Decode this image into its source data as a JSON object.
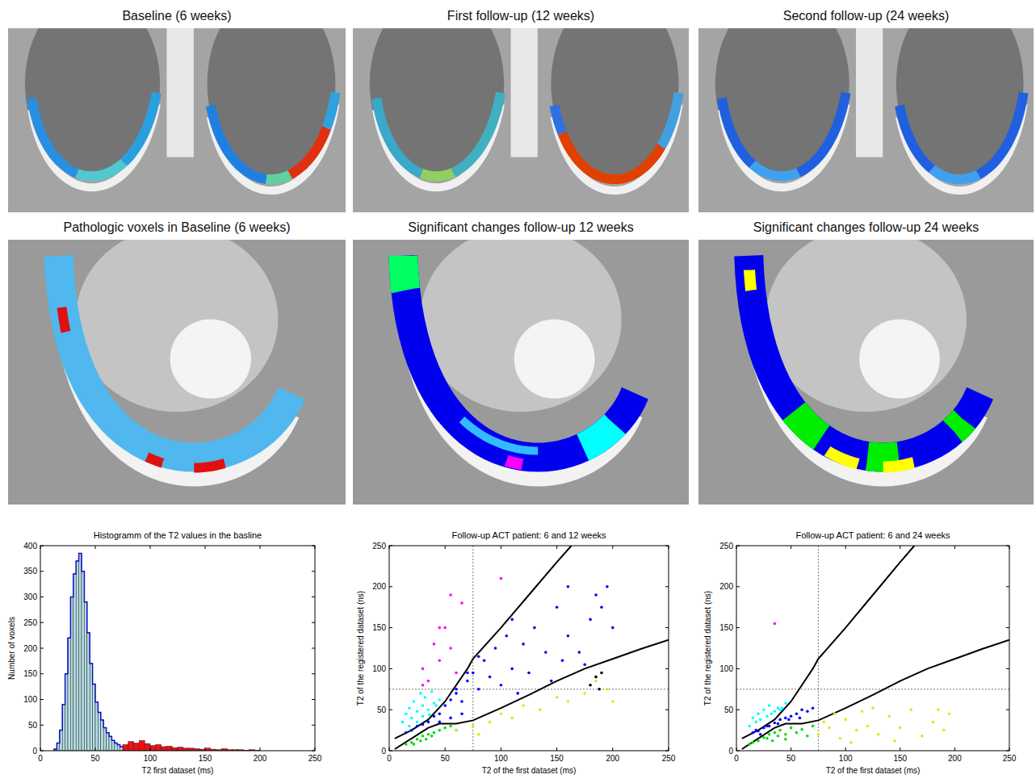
{
  "panels": [
    {
      "title": "Baseline (6 weeks)"
    },
    {
      "title": "First follow-up (12 weeks)"
    },
    {
      "title": "Second follow-up (24 weeks)"
    },
    {
      "title": "Pathologic voxels in Baseline (6 weeks)"
    },
    {
      "title": "Significant changes follow-up  12 weeks"
    },
    {
      "title": "Significant changes follow-up 24 weeks"
    }
  ],
  "chart_data": [
    {
      "type": "histogram",
      "title": "Histogramm of the T2 values in the basline",
      "x_label": "T2 first dataset (ms)",
      "y_label": "Number of voxels",
      "bins": [
        12.5,
        15,
        17.5,
        20,
        22.5,
        25,
        27.5,
        30,
        32.5,
        35,
        37.5,
        40,
        42.5,
        45,
        47.5,
        50,
        52.5,
        55,
        57.5,
        60,
        62.5,
        65,
        67.5,
        70,
        72.5,
        75,
        80,
        85,
        90,
        95,
        100,
        105,
        110,
        115,
        120,
        125,
        130,
        135,
        140,
        145,
        150,
        155,
        160,
        165,
        170,
        175,
        180,
        185,
        190,
        195,
        200
      ],
      "values": [
        3,
        15,
        40,
        90,
        150,
        220,
        300,
        345,
        370,
        385,
        350,
        290,
        230,
        170,
        130,
        95,
        75,
        60,
        45,
        35,
        28,
        20,
        15,
        12,
        8,
        12,
        18,
        15,
        20,
        14,
        10,
        12,
        8,
        9,
        6,
        7,
        5,
        5,
        4,
        3,
        5,
        3,
        2,
        4,
        2,
        2,
        2,
        1,
        2,
        1
      ],
      "colors": [
        "#b5dde3",
        "#b5dde3",
        "#b5dde3",
        "#b5dde3",
        "#b5dde3",
        "#b5dde3",
        "#b5dde3",
        "#b5dde3",
        "#b5dde3",
        "#b5dde3",
        "#b5dde3",
        "#b5dde3",
        "#b5dde3",
        "#b5dde3",
        "#b5dde3",
        "#b5dde3",
        "#b5dde3",
        "#b5dde3",
        "#b5dde3",
        "#b5dde3",
        "#b5dde3",
        "#b5dde3",
        "#b5dde3",
        "#b5dde3",
        "#b5dde3",
        "#ee1111",
        "#ee1111",
        "#ee1111",
        "#ee1111",
        "#ee1111",
        "#ee1111",
        "#ee1111",
        "#ee1111",
        "#ee1111",
        "#ee1111",
        "#ee1111",
        "#ee1111",
        "#ee1111",
        "#ee1111",
        "#ee1111",
        "#ee1111",
        "#ee1111",
        "#ee1111",
        "#ee1111",
        "#ee1111",
        "#ee1111",
        "#ee1111",
        "#ee1111",
        "#ee1111",
        "#ee1111"
      ],
      "xlim": [
        0,
        250
      ],
      "xticks": [
        0,
        50,
        100,
        150,
        200,
        250
      ],
      "ylim": [
        0,
        400
      ],
      "yticks": [
        0,
        50,
        100,
        150,
        200,
        250,
        300,
        350,
        400
      ],
      "grid": false
    },
    {
      "type": "scatter",
      "title": "Follow-up ACT patient: 6 and 12 weeks",
      "x_label": "T2 of the first dataset (ms)",
      "y_label": "T2 of the registered dataset (ns)",
      "xlim": [
        0,
        250
      ],
      "xticks": [
        0,
        50,
        100,
        150,
        200,
        250
      ],
      "ylim": [
        0,
        250
      ],
      "yticks": [
        0,
        50,
        100,
        150,
        200,
        250
      ],
      "grid": false,
      "vlines": [
        75
      ],
      "hlines": [
        75
      ],
      "series": [
        {
          "type": "line",
          "color": "#000000",
          "line_style": "solid",
          "x": [
            5,
            20,
            35,
            50,
            60,
            70,
            75,
            100,
            125,
            150,
            163
          ],
          "values": [
            15,
            25,
            38,
            60,
            80,
            100,
            112,
            150,
            190,
            230,
            250
          ]
        },
        {
          "type": "line",
          "color": "#000000",
          "line_style": "solid",
          "x": [
            5,
            20,
            35,
            45,
            60,
            75,
            100,
            125,
            150,
            175,
            200,
            225,
            250
          ],
          "values": [
            2,
            15,
            28,
            33,
            33,
            37,
            52,
            68,
            85,
            100,
            112,
            124,
            135
          ]
        },
        {
          "type": "scatter",
          "color": "#00ffff",
          "marker": "dot",
          "x": [
            12,
            15,
            18,
            20,
            22,
            25,
            28,
            30,
            32,
            35,
            38,
            40,
            42,
            45,
            25,
            18,
            30,
            36
          ],
          "values": [
            35,
            45,
            52,
            40,
            60,
            48,
            70,
            55,
            65,
            50,
            72,
            58,
            55,
            62,
            35,
            30,
            42,
            44
          ]
        },
        {
          "type": "scatter",
          "color": "#0000ff",
          "marker": "dot",
          "x": [
            15,
            20,
            25,
            30,
            35,
            40,
            45,
            50,
            55,
            60,
            65,
            70,
            75,
            80,
            85,
            90,
            95,
            100,
            105,
            110,
            120,
            125,
            130,
            140,
            150,
            155,
            160,
            170,
            180,
            185,
            190,
            195,
            200,
            175,
            145,
            115,
            65,
            55,
            45,
            60,
            80,
            70,
            110,
            160
          ],
          "values": [
            22,
            25,
            30,
            32,
            35,
            42,
            45,
            55,
            62,
            70,
            60,
            85,
            95,
            75,
            110,
            90,
            125,
            80,
            140,
            100,
            130,
            95,
            150,
            120,
            175,
            110,
            140,
            120,
            160,
            190,
            175,
            200,
            150,
            105,
            85,
            70,
            45,
            40,
            35,
            75,
            115,
            95,
            160,
            200
          ]
        },
        {
          "type": "scatter",
          "color": "#00dd00",
          "marker": "dot",
          "x": [
            15,
            20,
            25,
            30,
            35,
            40,
            45,
            50,
            28,
            38,
            55,
            60,
            22,
            33
          ],
          "values": [
            8,
            10,
            14,
            18,
            20,
            22,
            25,
            28,
            12,
            18,
            30,
            25,
            8,
            14
          ]
        },
        {
          "type": "scatter",
          "color": "#ff00ff",
          "marker": "dot",
          "x": [
            30,
            35,
            40,
            45,
            50,
            55,
            60,
            65,
            30,
            100,
            45,
            55
          ],
          "values": [
            100,
            85,
            130,
            110,
            150,
            125,
            95,
            180,
            80,
            210,
            150,
            190
          ]
        },
        {
          "type": "scatter",
          "color": "#e6e600",
          "marker": "dot",
          "x": [
            60,
            75,
            90,
            100,
            110,
            120,
            135,
            150,
            160,
            175,
            185,
            195,
            200,
            80
          ],
          "values": [
            25,
            30,
            35,
            45,
            40,
            55,
            50,
            65,
            60,
            70,
            85,
            75,
            60,
            20
          ]
        },
        {
          "type": "scatter",
          "color": "#000000",
          "marker": "dot",
          "x": [
            180,
            185,
            190,
            188
          ],
          "values": [
            80,
            90,
            95,
            75
          ]
        }
      ]
    },
    {
      "type": "scatter",
      "title": "Follow-up ACT patient: 6 and 24 weeks",
      "x_label": "T2 of the first dataset (ms)",
      "y_label": "T2 of the registered dataset (ns)",
      "xlim": [
        0,
        250
      ],
      "xticks": [
        0,
        50,
        100,
        150,
        200,
        250
      ],
      "ylim": [
        0,
        250
      ],
      "yticks": [
        0,
        50,
        100,
        150,
        200,
        250
      ],
      "grid": false,
      "vlines": [
        75
      ],
      "hlines": [
        75
      ],
      "series": [
        {
          "type": "line",
          "color": "#000000",
          "line_style": "solid",
          "x": [
            5,
            20,
            35,
            50,
            60,
            70,
            75,
            100,
            125,
            150,
            163
          ],
          "values": [
            15,
            25,
            38,
            60,
            80,
            100,
            112,
            150,
            190,
            230,
            250
          ]
        },
        {
          "type": "line",
          "color": "#000000",
          "line_style": "solid",
          "x": [
            5,
            20,
            35,
            45,
            60,
            75,
            100,
            125,
            150,
            175,
            200,
            225,
            250
          ],
          "values": [
            2,
            15,
            28,
            33,
            33,
            37,
            52,
            68,
            85,
            100,
            112,
            124,
            135
          ]
        },
        {
          "type": "scatter",
          "color": "#00ffff",
          "marker": "dot",
          "x": [
            12,
            15,
            18,
            20,
            22,
            25,
            28,
            30,
            32,
            35,
            38,
            40,
            45,
            42
          ],
          "values": [
            30,
            40,
            35,
            45,
            38,
            50,
            42,
            55,
            45,
            48,
            52,
            50,
            58,
            52
          ]
        },
        {
          "type": "scatter",
          "color": "#0000ff",
          "marker": "dot",
          "x": [
            15,
            18,
            20,
            25,
            28,
            30,
            35,
            38,
            40,
            45,
            50,
            55,
            60,
            65,
            70,
            48,
            58,
            22
          ],
          "values": [
            22,
            25,
            24,
            28,
            30,
            30,
            34,
            33,
            38,
            40,
            42,
            45,
            50,
            48,
            52,
            38,
            40,
            20
          ]
        },
        {
          "type": "scatter",
          "color": "#00dd00",
          "marker": "dot",
          "x": [
            12,
            15,
            20,
            25,
            28,
            30,
            35,
            38,
            40,
            45,
            50,
            55,
            60,
            65,
            70,
            33,
            45
          ],
          "values": [
            8,
            10,
            12,
            16,
            15,
            20,
            22,
            18,
            25,
            20,
            28,
            22,
            26,
            18,
            30,
            12,
            14
          ]
        },
        {
          "type": "scatter",
          "color": "#e6e600",
          "marker": "dot",
          "x": [
            75,
            80,
            85,
            90,
            95,
            100,
            110,
            115,
            120,
            130,
            140,
            150,
            160,
            170,
            180,
            190,
            195,
            105,
            125,
            145,
            185
          ],
          "values": [
            20,
            35,
            28,
            45,
            15,
            38,
            25,
            48,
            30,
            20,
            42,
            28,
            50,
            18,
            35,
            25,
            45,
            10,
            52,
            12,
            50
          ]
        },
        {
          "type": "scatter",
          "color": "#ff00ff",
          "marker": "dot",
          "x": [
            35
          ],
          "values": [
            155
          ]
        }
      ]
    }
  ]
}
